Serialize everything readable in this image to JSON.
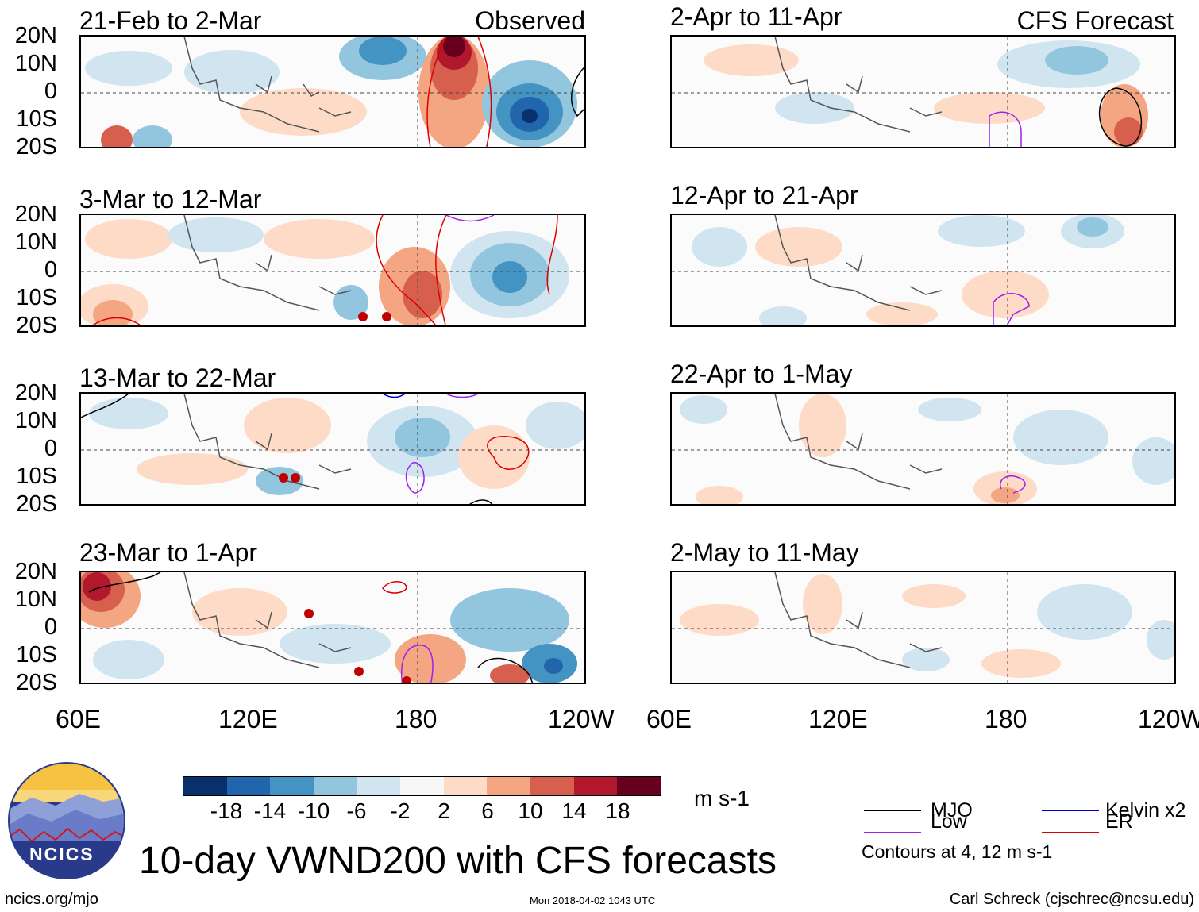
{
  "title": "10-day VWND200 with CFS forecasts",
  "panel_tags": {
    "observed": "Observed",
    "forecast": "CFS Forecast"
  },
  "periods_observed": [
    "21-Feb to 2-Mar",
    "3-Mar to 12-Mar",
    "13-Mar to 22-Mar",
    "23-Mar to 1-Apr"
  ],
  "periods_forecast": [
    "2-Apr to 11-Apr",
    "12-Apr to 21-Apr",
    "22-Apr to 1-May",
    "2-May to 11-May"
  ],
  "lat_labels": [
    "20N",
    "10N",
    "0",
    "10S",
    "20S"
  ],
  "lon_labels": [
    "60E",
    "120E",
    "180",
    "120W"
  ],
  "colorbar": {
    "levels": [
      "-18",
      "-14",
      "-10",
      "-6",
      "-2",
      "2",
      "6",
      "10",
      "14",
      "18"
    ],
    "colors": [
      "#08306b",
      "#2166ac",
      "#4393c3",
      "#92c5de",
      "#d1e5f0",
      "#f7f7f7",
      "#fddbc7",
      "#f4a582",
      "#d6604d",
      "#b2182b",
      "#67001f"
    ],
    "units": "m s-1"
  },
  "legend": {
    "mjo": {
      "label": "MJO",
      "color": "#000000"
    },
    "kelvin": {
      "label": "Kelvin x2",
      "color": "#0000cc"
    },
    "low": {
      "label": "Low",
      "color": "#a020f0"
    },
    "er": {
      "label": "ER",
      "color": "#dd0000"
    },
    "contour_note": "Contours at 4, 12 m s-1"
  },
  "footer": {
    "left": "ncics.org/mjo",
    "center": "Mon 2018-04-02 1043 UTC",
    "right": "Carl Schreck (cjschrec@ncsu.edu)"
  },
  "logo_text": "NCICS"
}
